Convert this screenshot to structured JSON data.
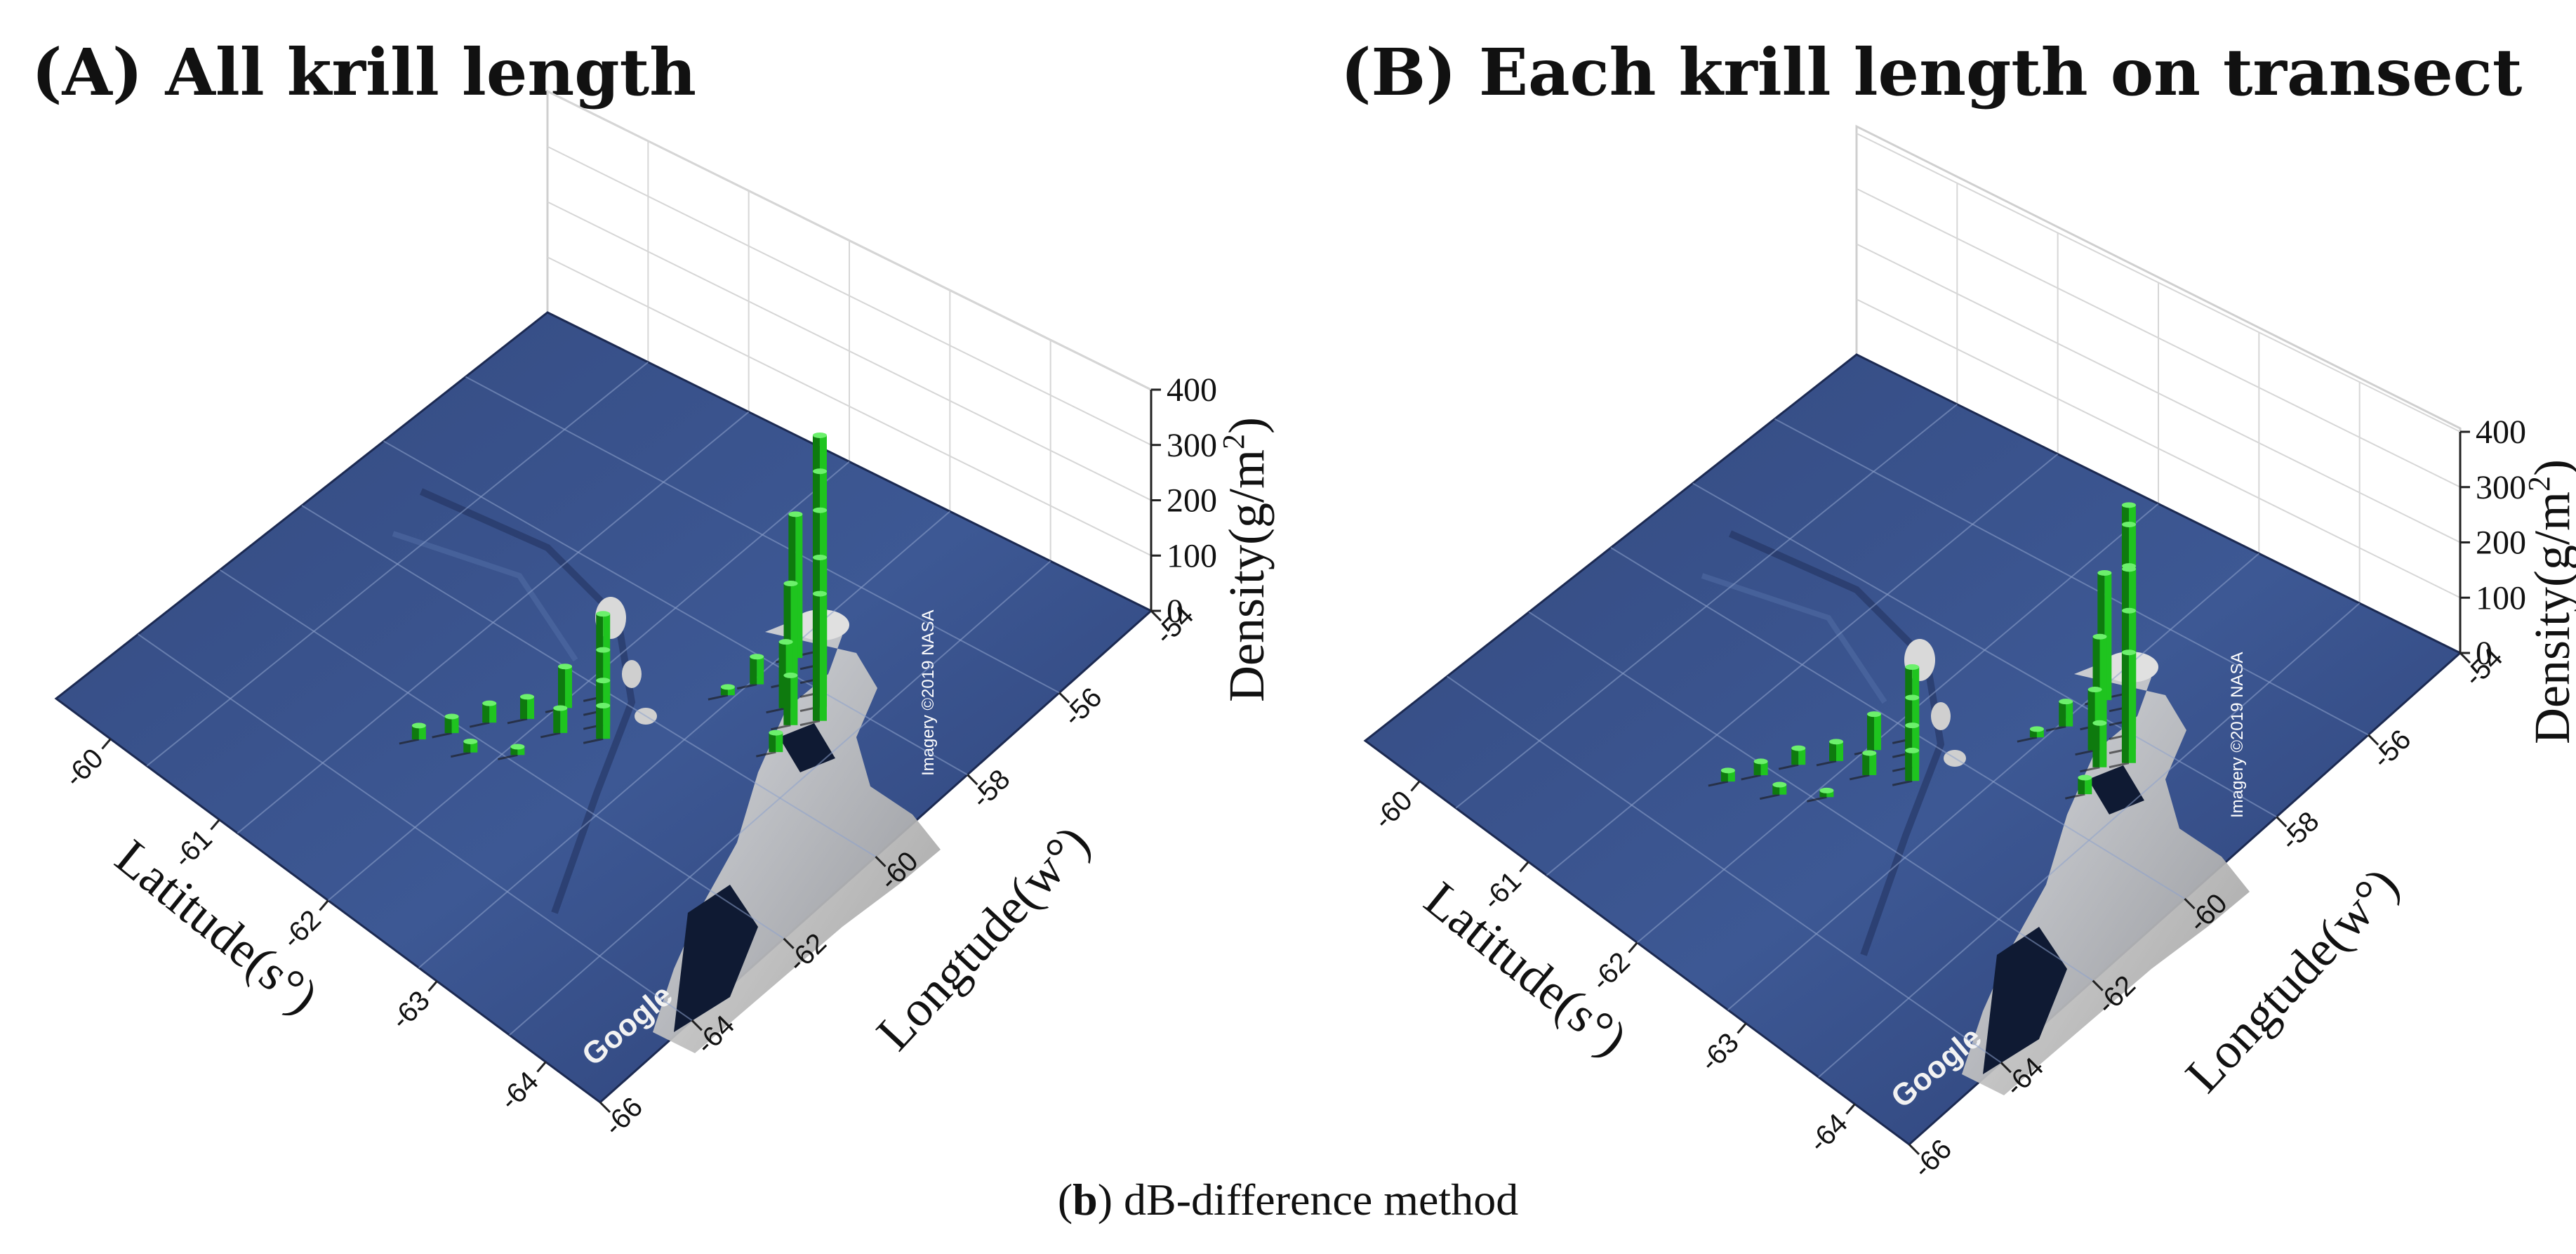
{
  "caption": {
    "letter": "b",
    "text": ") dB-difference method",
    "open": "("
  },
  "colors": {
    "bar": "#1fc41f",
    "bar_dark": "#0e7a0e",
    "ocean": "#3a548f",
    "ocean_dark": "#27386a",
    "grid": "#d0d0d0"
  },
  "chart_data": [
    {
      "type": "3d-bar",
      "title": "(A) All krill length",
      "xlabel": "Longtude(w°)",
      "ylabel": "Latitude(s°)",
      "zlabel": "Density(g/m²)",
      "zlabel_parts": {
        "main": "Density(g/m",
        "sup": "2",
        "end": ")"
      },
      "xticks": [
        "-54",
        "-56",
        "-58",
        "-60",
        "-62",
        "-64",
        "-66"
      ],
      "yticks": [
        "-60",
        "-61",
        "-62",
        "-63",
        "-64"
      ],
      "zticks": [
        "0",
        "100",
        "200",
        "300",
        "400"
      ],
      "xlim": [
        -66,
        -54
      ],
      "ylim": [
        -65,
        -59.5
      ],
      "zlim": [
        0,
        400
      ],
      "basemap": {
        "attribution": "Imagery ©2019 NASA",
        "logo": "Google"
      },
      "bars": [
        {
          "lon": -57.6,
          "lat": -61.05,
          "value": 390
        },
        {
          "lon": -57.4,
          "lat": -61.15,
          "value": 350
        },
        {
          "lon": -57.2,
          "lat": -61.25,
          "value": 300
        },
        {
          "lon": -57.0,
          "lat": -61.35,
          "value": 330
        },
        {
          "lon": -56.8,
          "lat": -61.45,
          "value": 270
        },
        {
          "lon": -56.6,
          "lat": -61.55,
          "value": 230
        },
        {
          "lon": -57.8,
          "lat": -61.2,
          "value": 260
        },
        {
          "lon": -57.5,
          "lat": -61.4,
          "value": 180
        },
        {
          "lon": -57.2,
          "lat": -61.6,
          "value": 120
        },
        {
          "lon": -56.9,
          "lat": -61.7,
          "value": 90
        },
        {
          "lon": -57.9,
          "lat": -61.55,
          "value": 50
        },
        {
          "lon": -56.7,
          "lat": -61.95,
          "value": 35
        },
        {
          "lon": -58.1,
          "lat": -61.75,
          "value": 15
        },
        {
          "lon": -59.6,
          "lat": -62.3,
          "value": 150
        },
        {
          "lon": -59.4,
          "lat": -62.4,
          "value": 110
        },
        {
          "lon": -59.2,
          "lat": -62.5,
          "value": 80
        },
        {
          "lon": -59.0,
          "lat": -62.6,
          "value": 60
        },
        {
          "lon": -59.9,
          "lat": -62.55,
          "value": 75
        },
        {
          "lon": -59.6,
          "lat": -62.75,
          "value": 45
        },
        {
          "lon": -60.2,
          "lat": -62.8,
          "value": 40
        },
        {
          "lon": -60.6,
          "lat": -63.0,
          "value": 35
        },
        {
          "lon": -60.9,
          "lat": -63.25,
          "value": 30
        },
        {
          "lon": -61.2,
          "lat": -63.45,
          "value": 25
        },
        {
          "lon": -60.4,
          "lat": -63.3,
          "value": 20
        },
        {
          "lon": -59.8,
          "lat": -63.1,
          "value": 15
        }
      ]
    },
    {
      "type": "3d-bar",
      "title": "(B) Each krill length on transect",
      "xlabel": "Longtude(w°)",
      "ylabel": "Latitude(s°)",
      "zlabel": "Density(g/m²)",
      "zlabel_parts": {
        "main": "Density(g/m",
        "sup": "2",
        "end": ")"
      },
      "xticks": [
        "-54",
        "-56",
        "-58",
        "-60",
        "-62",
        "-64",
        "-66"
      ],
      "yticks": [
        "-60",
        "-61",
        "-62",
        "-63",
        "-64"
      ],
      "zticks": [
        "0",
        "100",
        "200",
        "300",
        "400"
      ],
      "xlim": [
        -66,
        -54
      ],
      "ylim": [
        -65,
        -59.5
      ],
      "zlim": [
        0,
        400
      ],
      "basemap": {
        "attribution": "Imagery ©2019 NASA",
        "logo": "Google"
      },
      "bars": [
        {
          "lon": -57.6,
          "lat": -61.05,
          "value": 340
        },
        {
          "lon": -57.4,
          "lat": -61.15,
          "value": 330
        },
        {
          "lon": -57.2,
          "lat": -61.25,
          "value": 280
        },
        {
          "lon": -57.0,
          "lat": -61.35,
          "value": 300
        },
        {
          "lon": -56.8,
          "lat": -61.45,
          "value": 250
        },
        {
          "lon": -56.6,
          "lat": -61.55,
          "value": 200
        },
        {
          "lon": -57.8,
          "lat": -61.2,
          "value": 230
        },
        {
          "lon": -57.5,
          "lat": -61.4,
          "value": 160
        },
        {
          "lon": -57.2,
          "lat": -61.6,
          "value": 110
        },
        {
          "lon": -56.9,
          "lat": -61.7,
          "value": 80
        },
        {
          "lon": -57.9,
          "lat": -61.55,
          "value": 45
        },
        {
          "lon": -56.7,
          "lat": -61.95,
          "value": 30
        },
        {
          "lon": -58.1,
          "lat": -61.75,
          "value": 15
        },
        {
          "lon": -59.6,
          "lat": -62.3,
          "value": 130
        },
        {
          "lon": -59.4,
          "lat": -62.4,
          "value": 100
        },
        {
          "lon": -59.2,
          "lat": -62.5,
          "value": 75
        },
        {
          "lon": -59.0,
          "lat": -62.6,
          "value": 55
        },
        {
          "lon": -59.9,
          "lat": -62.55,
          "value": 65
        },
        {
          "lon": -59.6,
          "lat": -62.75,
          "value": 40
        },
        {
          "lon": -60.2,
          "lat": -62.8,
          "value": 35
        },
        {
          "lon": -60.6,
          "lat": -63.0,
          "value": 30
        },
        {
          "lon": -60.9,
          "lat": -63.25,
          "value": 25
        },
        {
          "lon": -61.2,
          "lat": -63.45,
          "value": 20
        },
        {
          "lon": -60.4,
          "lat": -63.3,
          "value": 18
        },
        {
          "lon": -59.8,
          "lat": -63.1,
          "value": 12
        }
      ]
    }
  ]
}
